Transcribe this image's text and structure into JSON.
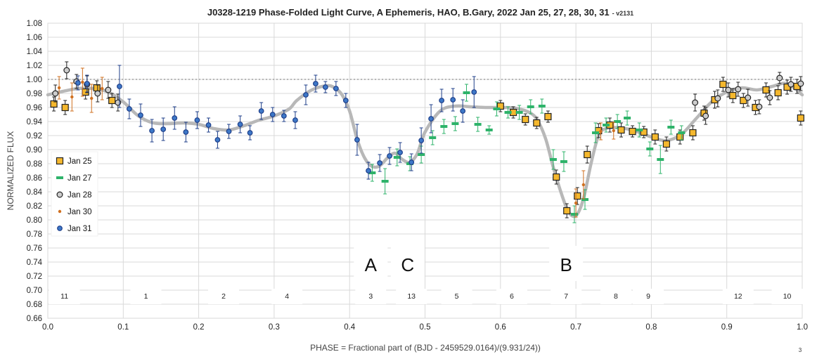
{
  "chart_data": {
    "type": "scatter",
    "title": "J0328-1219 Phase-Folded Light Curve, A Ephemeris, HAO, B.Gary, 2022 Jan 25, 27, 28, 30, 31",
    "version": "- v2131",
    "xlabel": "PHASE = Fractional part of (BJD - 2459529.0164)/(9.931/24))",
    "ylabel": "NORMALIZED FLUX",
    "xlim": [
      0.0,
      1.0
    ],
    "ylim": [
      0.66,
      1.08
    ],
    "x_ticks": [
      "0.0",
      "0.1",
      "0.2",
      "0.3",
      "0.4",
      "0.5",
      "0.6",
      "0.7",
      "0.8",
      "0.9",
      "1.0"
    ],
    "y_ticks": [
      "0.66",
      "0.68",
      "0.70",
      "0.72",
      "0.74",
      "0.76",
      "0.78",
      "0.80",
      "0.82",
      "0.84",
      "0.86",
      "0.88",
      "0.90",
      "0.92",
      "0.94",
      "0.96",
      "0.98",
      "1.00",
      "1.02",
      "1.04",
      "1.06",
      "1.08"
    ],
    "grid": true,
    "legend_position": "left",
    "reference_line": {
      "y": 1.0,
      "style": "dotted"
    },
    "corner_note": "3",
    "series": [
      {
        "name": "Jan 25",
        "marker": "square",
        "color": "#f5b82e",
        "stroke": "#222222",
        "points": [
          [
            0.008,
            0.965,
            0.01
          ],
          [
            0.023,
            0.96,
            0.01
          ],
          [
            0.05,
            0.982,
            0.01
          ],
          [
            0.065,
            0.988,
            0.01
          ],
          [
            0.085,
            0.97,
            0.01
          ],
          [
            0.6,
            0.962,
            0.008
          ],
          [
            0.617,
            0.953,
            0.008
          ],
          [
            0.633,
            0.943,
            0.008
          ],
          [
            0.648,
            0.938,
            0.008
          ],
          [
            0.663,
            0.947,
            0.008
          ],
          [
            0.674,
            0.861,
            0.01
          ],
          [
            0.688,
            0.813,
            0.01
          ],
          [
            0.702,
            0.834,
            0.012
          ],
          [
            0.715,
            0.893,
            0.012
          ],
          [
            0.73,
            0.927,
            0.01
          ],
          [
            0.745,
            0.935,
            0.01
          ],
          [
            0.76,
            0.928,
            0.01
          ],
          [
            0.775,
            0.926,
            0.008
          ],
          [
            0.79,
            0.925,
            0.008
          ],
          [
            0.805,
            0.918,
            0.01
          ],
          [
            0.82,
            0.908,
            0.01
          ],
          [
            0.838,
            0.918,
            0.01
          ],
          [
            0.855,
            0.924,
            0.01
          ],
          [
            0.87,
            0.952,
            0.01
          ],
          [
            0.884,
            0.971,
            0.012
          ],
          [
            0.895,
            0.993,
            0.01
          ],
          [
            0.908,
            0.977,
            0.01
          ],
          [
            0.922,
            0.97,
            0.01
          ],
          [
            0.938,
            0.96,
            0.01
          ],
          [
            0.952,
            0.985,
            0.01
          ],
          [
            0.968,
            0.981,
            0.01
          ],
          [
            0.98,
            0.989,
            0.01
          ],
          [
            0.993,
            0.99,
            0.01
          ],
          [
            0.998,
            0.945,
            0.01
          ]
        ]
      },
      {
        "name": "Jan 27",
        "marker": "dash",
        "color": "#2eb36a",
        "stroke": "#2eb36a",
        "points": [
          [
            0.43,
            0.867,
            0.012
          ],
          [
            0.447,
            0.855,
            0.018
          ],
          [
            0.463,
            0.889,
            0.012
          ],
          [
            0.48,
            0.88,
            0.01
          ],
          [
            0.495,
            0.893,
            0.012
          ],
          [
            0.51,
            0.917,
            0.01
          ],
          [
            0.525,
            0.933,
            0.01
          ],
          [
            0.54,
            0.937,
            0.01
          ],
          [
            0.555,
            0.981,
            0.012
          ],
          [
            0.57,
            0.936,
            0.01
          ],
          [
            0.585,
            0.928,
            0.006
          ],
          [
            0.595,
            0.958,
            0.01
          ],
          [
            0.61,
            0.953,
            0.008
          ],
          [
            0.625,
            0.953,
            0.01
          ],
          [
            0.64,
            0.961,
            0.01
          ],
          [
            0.655,
            0.962,
            0.01
          ],
          [
            0.67,
            0.886,
            0.014
          ],
          [
            0.684,
            0.883,
            0.014
          ],
          [
            0.698,
            0.808,
            0.012
          ],
          [
            0.712,
            0.829,
            0.014
          ],
          [
            0.726,
            0.924,
            0.014
          ],
          [
            0.74,
            0.935,
            0.01
          ],
          [
            0.755,
            0.94,
            0.01
          ],
          [
            0.768,
            0.945,
            0.01
          ],
          [
            0.784,
            0.928,
            0.01
          ],
          [
            0.798,
            0.901,
            0.01
          ],
          [
            0.812,
            0.886,
            0.02
          ],
          [
            0.826,
            0.932,
            0.01
          ],
          [
            0.84,
            0.924,
            0.01
          ]
        ]
      },
      {
        "name": "Jan 28",
        "marker": "circle",
        "color": "#cccccc",
        "stroke": "#222222",
        "points": [
          [
            0.01,
            0.98,
            0.012
          ],
          [
            0.025,
            1.013,
            0.012
          ],
          [
            0.038,
            0.997,
            0.01
          ],
          [
            0.052,
            0.993,
            0.012
          ],
          [
            0.066,
            0.98,
            0.012
          ],
          [
            0.08,
            0.985,
            0.012
          ],
          [
            0.093,
            0.967,
            0.012
          ],
          [
            0.858,
            0.967,
            0.012
          ],
          [
            0.872,
            0.948,
            0.012
          ],
          [
            0.888,
            0.973,
            0.012
          ],
          [
            0.902,
            0.985,
            0.01
          ],
          [
            0.915,
            0.986,
            0.01
          ],
          [
            0.928,
            0.974,
            0.012
          ],
          [
            0.943,
            0.961,
            0.01
          ],
          [
            0.957,
            0.974,
            0.01
          ],
          [
            0.97,
            1.002,
            0.008
          ],
          [
            0.985,
            0.993,
            0.01
          ],
          [
            0.998,
            0.994,
            0.01
          ]
        ]
      },
      {
        "name": "Jan 30",
        "marker": "dot",
        "color": "#d07020",
        "stroke": "#d07020",
        "points": [
          [
            0.015,
            0.988,
            0.016
          ],
          [
            0.032,
            0.975,
            0.02
          ],
          [
            0.046,
            0.996,
            0.02
          ],
          [
            0.058,
            0.973,
            0.02
          ],
          [
            0.072,
            0.987,
            0.016
          ],
          [
            0.7,
            0.824,
            0.02
          ],
          [
            0.71,
            0.85,
            0.02
          ],
          [
            0.733,
            0.926,
            0.012
          ],
          [
            0.75,
            0.927,
            0.012
          ]
        ]
      },
      {
        "name": "Jan 31",
        "marker": "circle",
        "color": "#3d78c8",
        "stroke": "#1f3f8a",
        "points": [
          [
            0.04,
            0.995,
            0.01
          ],
          [
            0.052,
            0.994,
            0.012
          ],
          [
            0.095,
            0.99,
            0.03
          ],
          [
            0.108,
            0.958,
            0.014
          ],
          [
            0.123,
            0.949,
            0.016
          ],
          [
            0.138,
            0.927,
            0.016
          ],
          [
            0.153,
            0.929,
            0.016
          ],
          [
            0.168,
            0.945,
            0.016
          ],
          [
            0.183,
            0.925,
            0.014
          ],
          [
            0.198,
            0.942,
            0.012
          ],
          [
            0.213,
            0.935,
            0.01
          ],
          [
            0.225,
            0.914,
            0.012
          ],
          [
            0.24,
            0.926,
            0.01
          ],
          [
            0.255,
            0.936,
            0.012
          ],
          [
            0.268,
            0.924,
            0.01
          ],
          [
            0.283,
            0.955,
            0.012
          ],
          [
            0.298,
            0.95,
            0.01
          ],
          [
            0.313,
            0.948,
            0.008
          ],
          [
            0.328,
            0.942,
            0.012
          ],
          [
            0.342,
            0.978,
            0.014
          ],
          [
            0.355,
            0.994,
            0.012
          ],
          [
            0.368,
            0.989,
            0.008
          ],
          [
            0.382,
            0.987,
            0.01
          ],
          [
            0.395,
            0.97,
            0.01
          ],
          [
            0.41,
            0.914,
            0.022
          ],
          [
            0.425,
            0.87,
            0.012
          ],
          [
            0.44,
            0.881,
            0.012
          ],
          [
            0.453,
            0.891,
            0.012
          ],
          [
            0.467,
            0.896,
            0.014
          ],
          [
            0.482,
            0.882,
            0.012
          ],
          [
            0.495,
            0.913,
            0.018
          ],
          [
            0.508,
            0.944,
            0.02
          ],
          [
            0.522,
            0.97,
            0.016
          ],
          [
            0.537,
            0.971,
            0.016
          ],
          [
            0.55,
            0.955,
            0.016
          ],
          [
            0.565,
            0.982,
            0.022
          ]
        ]
      }
    ],
    "model_curve": {
      "color": "#b8b8b8",
      "x": [
        0.0,
        0.02,
        0.04,
        0.06,
        0.08,
        0.1,
        0.12,
        0.14,
        0.16,
        0.18,
        0.2,
        0.22,
        0.24,
        0.26,
        0.28,
        0.3,
        0.32,
        0.33,
        0.35,
        0.37,
        0.38,
        0.39,
        0.4,
        0.41,
        0.42,
        0.43,
        0.44,
        0.45,
        0.46,
        0.47,
        0.48,
        0.49,
        0.5,
        0.52,
        0.54,
        0.56,
        0.58,
        0.6,
        0.62,
        0.64,
        0.65,
        0.66,
        0.67,
        0.68,
        0.69,
        0.7,
        0.71,
        0.72,
        0.73,
        0.74,
        0.76,
        0.78,
        0.8,
        0.82,
        0.84,
        0.86,
        0.88,
        0.9,
        0.92,
        0.94,
        0.96,
        0.98,
        1.0
      ],
      "y": [
        0.978,
        0.983,
        0.987,
        0.987,
        0.982,
        0.968,
        0.948,
        0.938,
        0.937,
        0.938,
        0.936,
        0.93,
        0.928,
        0.934,
        0.942,
        0.948,
        0.958,
        0.97,
        0.985,
        0.991,
        0.988,
        0.978,
        0.955,
        0.915,
        0.888,
        0.876,
        0.877,
        0.888,
        0.895,
        0.886,
        0.882,
        0.895,
        0.925,
        0.955,
        0.962,
        0.961,
        0.96,
        0.96,
        0.959,
        0.952,
        0.94,
        0.915,
        0.875,
        0.84,
        0.812,
        0.806,
        0.83,
        0.88,
        0.92,
        0.93,
        0.931,
        0.926,
        0.918,
        0.913,
        0.922,
        0.945,
        0.968,
        0.982,
        0.988,
        0.985,
        0.99,
        0.994,
        0.978
      ]
    },
    "region_letters": [
      {
        "text": "A",
        "x": 0.428
      },
      {
        "text": "C",
        "x": 0.477
      },
      {
        "text": "B",
        "x": 0.687
      }
    ],
    "segment_labels": [
      {
        "text": "11",
        "x": 0.022
      },
      {
        "text": "1",
        "x": 0.13
      },
      {
        "text": "2",
        "x": 0.233
      },
      {
        "text": "4",
        "x": 0.317
      },
      {
        "text": "3",
        "x": 0.428
      },
      {
        "text": "13",
        "x": 0.482
      },
      {
        "text": "5",
        "x": 0.542
      },
      {
        "text": "6",
        "x": 0.615
      },
      {
        "text": "7",
        "x": 0.687
      },
      {
        "text": "8",
        "x": 0.753
      },
      {
        "text": "9",
        "x": 0.796
      },
      {
        "text": "12",
        "x": 0.915
      },
      {
        "text": "10",
        "x": 0.98
      }
    ]
  }
}
